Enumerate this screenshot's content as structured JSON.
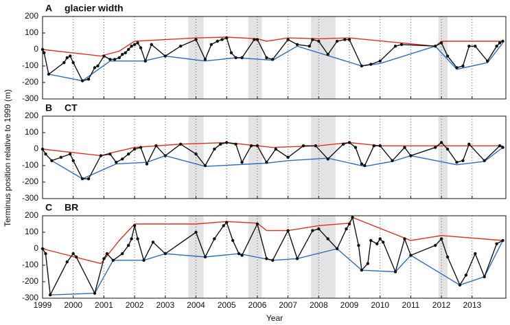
{
  "ylabel": "Terminus position relative to 1999 (m)",
  "xlabel": "Year",
  "chart_data": [
    {
      "type": "line",
      "label": "A",
      "title": "glacier width",
      "xlim": [
        1999,
        2014.1
      ],
      "ylim": [
        -300,
        200
      ],
      "yticks": [
        -300,
        -200,
        -100,
        0,
        100,
        200
      ],
      "xticks": [
        1999,
        2000,
        2001,
        2002,
        2003,
        2004,
        2005,
        2006,
        2007,
        2008,
        2009,
        2010,
        2011,
        2012,
        2013
      ],
      "grid": true,
      "shaded": [
        [
          2003.75,
          2004.25
        ],
        [
          2005.7,
          2006.15
        ],
        [
          2007.75,
          2008.55
        ],
        [
          2011.9,
          2012.2
        ]
      ],
      "series": [
        {
          "color": "#e0301e",
          "markers": false,
          "x": [
            1999.0,
            2000.9,
            2001.5,
            2002.0,
            2004.0,
            2005.0,
            2006.0,
            2006.3,
            2007.0,
            2008.0,
            2009.0,
            2011.8,
            2012.0,
            2014.0
          ],
          "values": [
            0,
            -40,
            -10,
            50,
            70,
            75,
            65,
            50,
            70,
            65,
            70,
            20,
            50,
            50
          ]
        },
        {
          "color": "#2b6cc4",
          "markers": false,
          "x": [
            1999.2,
            2000.3,
            2001.2,
            2002.3,
            2003.0,
            2004.3,
            2005.3,
            2006.5,
            2007.3,
            2009.4,
            2010.0,
            2011.8,
            2012.5,
            2013.5,
            2014.0
          ],
          "values": [
            -150,
            -190,
            -70,
            -70,
            -40,
            -70,
            -50,
            -65,
            20,
            -100,
            -85,
            20,
            -120,
            -80,
            40
          ]
        },
        {
          "color": "#111111",
          "markers": true,
          "x": [
            1999.0,
            1999.05,
            1999.2,
            1999.7,
            1999.8,
            1999.9,
            2000.0,
            2000.3,
            2000.5,
            2000.7,
            2000.8,
            2001.0,
            2001.2,
            2001.35,
            2001.5,
            2001.6,
            2001.7,
            2001.8,
            2001.9,
            2002.0,
            2002.1,
            2002.2,
            2002.35,
            2002.55,
            2003.0,
            2003.5,
            2004.0,
            2004.3,
            2004.5,
            2004.7,
            2004.85,
            2005.0,
            2005.15,
            2005.3,
            2005.5,
            2005.9,
            2006.0,
            2006.3,
            2006.5,
            2007.0,
            2007.3,
            2007.7,
            2007.8,
            2008.0,
            2008.3,
            2008.6,
            2008.85,
            2009.0,
            2009.4,
            2009.7,
            2010.0,
            2010.5,
            2010.7,
            2011.8,
            2012.0,
            2012.2,
            2012.5,
            2012.7,
            2012.9,
            2013.1,
            2013.5,
            2013.8,
            2013.9,
            2014.0
          ],
          "values": [
            0,
            -20,
            -150,
            -80,
            -50,
            -40,
            -80,
            -190,
            -180,
            -110,
            -100,
            -40,
            -60,
            -60,
            -50,
            -30,
            -20,
            0,
            20,
            30,
            40,
            10,
            -70,
            30,
            -40,
            20,
            60,
            -60,
            30,
            50,
            60,
            70,
            -20,
            -50,
            -50,
            60,
            60,
            -50,
            -60,
            60,
            30,
            20,
            60,
            50,
            -30,
            50,
            60,
            60,
            -100,
            -90,
            -70,
            20,
            30,
            20,
            40,
            -40,
            -110,
            -100,
            20,
            20,
            -70,
            20,
            40,
            50
          ]
        }
      ]
    },
    {
      "type": "line",
      "label": "B",
      "title": "CT",
      "xlim": [
        1999,
        2014.1
      ],
      "ylim": [
        -300,
        200
      ],
      "yticks": [
        -300,
        -200,
        -100,
        0,
        100,
        200
      ],
      "xticks": [
        1999,
        2000,
        2001,
        2002,
        2003,
        2004,
        2005,
        2006,
        2007,
        2008,
        2009,
        2010,
        2011,
        2012,
        2013
      ],
      "grid": true,
      "shaded": [
        [
          2003.75,
          2004.25
        ],
        [
          2005.7,
          2006.15
        ],
        [
          2007.75,
          2008.55
        ],
        [
          2011.9,
          2012.2
        ]
      ],
      "series": [
        {
          "color": "#e0301e",
          "markers": false,
          "x": [
            1999.0,
            2000.9,
            2001.3,
            2002.0,
            2003.5,
            2005.0,
            2006.0,
            2006.5,
            2008.0,
            2009.0,
            2010.0,
            2012.0,
            2014.0
          ],
          "values": [
            0,
            -40,
            -20,
            10,
            30,
            40,
            20,
            10,
            20,
            40,
            20,
            20,
            20
          ]
        },
        {
          "color": "#2b6cc4",
          "markers": false,
          "x": [
            1999.3,
            2000.3,
            2001.4,
            2002.4,
            2003.0,
            2004.3,
            2006.3,
            2007.0,
            2008.3,
            2009.5,
            2010.4,
            2011.0,
            2012.5,
            2013.4,
            2014.0
          ],
          "values": [
            -70,
            -180,
            -90,
            -80,
            -40,
            -105,
            -85,
            -70,
            -55,
            -105,
            -75,
            -40,
            -95,
            -75,
            10
          ]
        },
        {
          "color": "#111111",
          "markers": true,
          "x": [
            1999.0,
            1999.1,
            1999.3,
            1999.6,
            1999.9,
            2000.0,
            2000.3,
            2000.5,
            2000.9,
            2001.2,
            2001.4,
            2001.6,
            2001.8,
            2002.0,
            2002.2,
            2002.4,
            2002.7,
            2003.0,
            2003.5,
            2004.0,
            2004.3,
            2004.6,
            2004.8,
            2005.0,
            2005.3,
            2005.5,
            2005.8,
            2006.0,
            2006.3,
            2006.6,
            2007.0,
            2007.5,
            2007.9,
            2008.3,
            2008.8,
            2009.0,
            2009.2,
            2009.4,
            2009.5,
            2009.8,
            2010.0,
            2010.4,
            2010.8,
            2011.0,
            2011.8,
            2012.0,
            2012.2,
            2012.5,
            2012.7,
            2012.9,
            2013.4,
            2013.9,
            2014.0
          ],
          "values": [
            0,
            -30,
            -70,
            -50,
            -30,
            -70,
            -180,
            -180,
            -40,
            -30,
            -80,
            -60,
            -30,
            0,
            10,
            -90,
            20,
            -40,
            30,
            -30,
            -100,
            0,
            30,
            40,
            30,
            -80,
            20,
            20,
            -80,
            0,
            -50,
            20,
            20,
            -60,
            30,
            40,
            10,
            -90,
            -100,
            20,
            20,
            -70,
            10,
            -40,
            10,
            40,
            0,
            -80,
            -70,
            30,
            -70,
            20,
            10
          ]
        }
      ]
    },
    {
      "type": "line",
      "label": "C",
      "title": "BR",
      "xlim": [
        1999,
        2014.1
      ],
      "ylim": [
        -300,
        200
      ],
      "yticks": [
        -300,
        -200,
        -100,
        0,
        100,
        200
      ],
      "xticks": [
        1999,
        2000,
        2001,
        2002,
        2003,
        2004,
        2005,
        2006,
        2007,
        2008,
        2009,
        2010,
        2011,
        2012,
        2013
      ],
      "grid": true,
      "shaded": [
        [
          2003.75,
          2004.25
        ],
        [
          2005.7,
          2006.15
        ],
        [
          2007.75,
          2008.55
        ],
        [
          2011.9,
          2012.2
        ]
      ],
      "series": [
        {
          "color": "#e0301e",
          "markers": false,
          "x": [
            1999.0,
            2000.9,
            2001.5,
            2002.0,
            2004.0,
            2005.0,
            2006.0,
            2006.3,
            2007.0,
            2008.0,
            2009.0,
            2009.1,
            2011.0,
            2012.0,
            2014.0
          ],
          "values": [
            0,
            -90,
            50,
            150,
            150,
            165,
            155,
            110,
            110,
            140,
            155,
            190,
            50,
            80,
            50
          ]
        },
        {
          "color": "#2b6cc4",
          "markers": false,
          "x": [
            1999.25,
            2000.7,
            2001.3,
            2002.3,
            2003.0,
            2004.3,
            2005.4,
            2006.5,
            2007.3,
            2008.6,
            2009.4,
            2010.5,
            2011.0,
            2012.6,
            2013.4,
            2014.0
          ],
          "values": [
            -280,
            -270,
            -70,
            -70,
            -30,
            -50,
            -30,
            -70,
            -60,
            0,
            -130,
            -140,
            -40,
            -220,
            -170,
            50
          ]
        },
        {
          "color": "#111111",
          "markers": true,
          "x": [
            1999.0,
            1999.1,
            1999.25,
            1999.8,
            2000.0,
            2000.1,
            2000.7,
            2001.0,
            2001.1,
            2001.3,
            2001.6,
            2001.8,
            2001.9,
            2002.0,
            2002.1,
            2002.3,
            2002.6,
            2003.0,
            2004.0,
            2004.3,
            2004.6,
            2004.9,
            2005.0,
            2005.2,
            2005.4,
            2005.5,
            2006.0,
            2006.3,
            2006.5,
            2007.0,
            2007.3,
            2007.8,
            2008.0,
            2008.3,
            2008.6,
            2008.9,
            2009.0,
            2009.1,
            2009.3,
            2009.4,
            2009.6,
            2009.7,
            2009.9,
            2010.0,
            2010.1,
            2010.5,
            2010.8,
            2011.0,
            2011.8,
            2012.0,
            2012.2,
            2012.6,
            2012.8,
            2013.1,
            2013.4,
            2013.8,
            2014.0
          ],
          "values": [
            0,
            -30,
            -280,
            -80,
            -30,
            -50,
            -270,
            -60,
            -30,
            -70,
            -30,
            20,
            60,
            140,
            60,
            -70,
            40,
            -30,
            100,
            -50,
            60,
            140,
            160,
            50,
            -30,
            -40,
            150,
            -60,
            -70,
            110,
            -60,
            110,
            120,
            60,
            0,
            120,
            150,
            190,
            20,
            -130,
            -90,
            50,
            30,
            60,
            40,
            -140,
            60,
            -40,
            20,
            60,
            -50,
            -220,
            -160,
            -30,
            -170,
            30,
            50
          ]
        }
      ]
    }
  ]
}
